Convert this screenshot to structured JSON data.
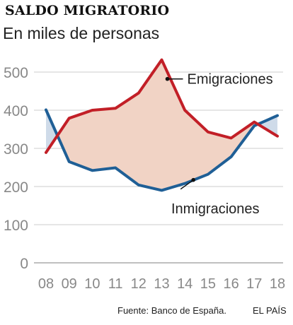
{
  "header": {
    "title": "SALDO MIGRATORIO",
    "subtitle": "En miles de personas"
  },
  "footer": {
    "source": "Fuente: Banco de España.",
    "brand": "EL PAÍS"
  },
  "colors": {
    "emigraciones": "#c21f27",
    "inmigraciones": "#1f5f96",
    "fill_emig_above": "#f1d3c5",
    "fill_inmig_above": "#cfdbe9",
    "grid": "#cccccc",
    "tick_text": "#888888"
  },
  "chart_data": {
    "type": "line",
    "categories": [
      "08",
      "09",
      "10",
      "11",
      "12",
      "13",
      "14",
      "15",
      "16",
      "17",
      "18"
    ],
    "series": [
      {
        "name": "Emigraciones",
        "values": [
          289,
          379,
          400,
          405,
          445,
          532,
          400,
          343,
          327,
          369,
          332
        ]
      },
      {
        "name": "Inmigraciones",
        "values": [
          401,
          265,
          242,
          249,
          204,
          190,
          208,
          232,
          278,
          359,
          386
        ]
      }
    ],
    "yticks": [
      0,
      100,
      200,
      300,
      400,
      500
    ],
    "ylim": [
      0,
      540
    ],
    "title": "SALDO MIGRATORIO",
    "subtitle": "En miles de personas",
    "grid": true,
    "fill_between": true,
    "series_label_placement": "inline"
  }
}
